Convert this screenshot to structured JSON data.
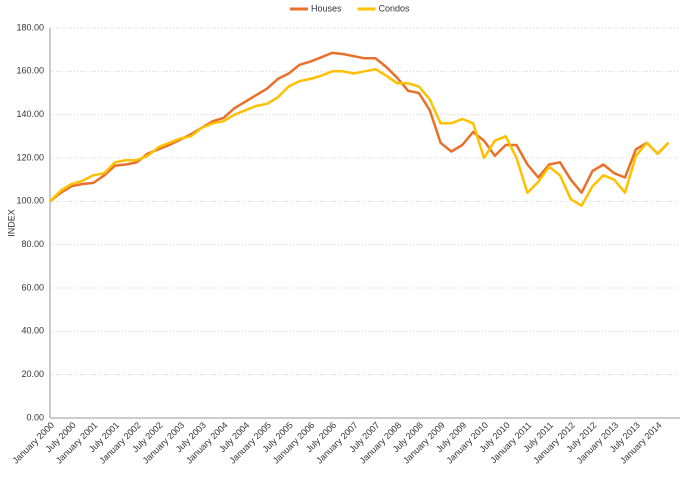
{
  "chart_data": {
    "type": "line",
    "y_label": "INDEX",
    "grid": true,
    "legend": "top",
    "categories": [
      "January 2000",
      null,
      "July 2000",
      null,
      "January 2001",
      null,
      "July 2001",
      null,
      "January 2002",
      null,
      "July 2002",
      null,
      "January 2003",
      null,
      "July 2003",
      null,
      "January 2004",
      null,
      "July 2004",
      null,
      "January 2005",
      null,
      "July 2005",
      null,
      "January 2006",
      null,
      "July 2006",
      null,
      "January 2007",
      null,
      "July 2007",
      null,
      "January 2008",
      null,
      "July 2008",
      null,
      "January 2009",
      null,
      "July 2009",
      null,
      "January 2010",
      null,
      "July 2010",
      null,
      "January 2011",
      null,
      "July 2011",
      null,
      "January 2012",
      null,
      "July 2012",
      null,
      "January 2013",
      null,
      "July 2013",
      null,
      "January 2014",
      null
    ],
    "series": [
      {
        "name": "Houses",
        "color": "#e8702a",
        "values": [
          100,
          104,
          107,
          108,
          108.5,
          112,
          116.5,
          117,
          118,
          122,
          124,
          126,
          128.5,
          131,
          134,
          137,
          138.5,
          143,
          146,
          149,
          152,
          156.5,
          159,
          163,
          164.5,
          166.5,
          168.5,
          168,
          167,
          166,
          166,
          162,
          157,
          151,
          150,
          142,
          127,
          123,
          126,
          132,
          128,
          121,
          126,
          126,
          117,
          111,
          117,
          118,
          110,
          104,
          114,
          117,
          113,
          111,
          124,
          127,
          122,
          127
        ]
      },
      {
        "name": "Condos",
        "color": "#ffc000",
        "values": [
          100,
          105,
          108,
          109.5,
          112,
          113,
          118,
          119,
          119,
          121,
          125,
          127,
          129,
          130,
          134,
          136,
          137,
          140,
          142,
          144,
          145,
          148,
          153,
          155.5,
          156.5,
          158,
          160,
          160,
          159,
          160,
          161,
          158,
          154.5,
          154.5,
          153,
          147,
          136,
          136,
          138,
          136,
          120,
          128,
          130,
          120,
          104,
          109,
          116,
          112,
          101,
          98,
          107,
          112,
          110,
          104,
          121,
          127,
          122,
          127
        ]
      }
    ],
    "ylim": [
      0,
      180
    ],
    "yticks": [
      {
        "value": 0,
        "label": "0.00"
      },
      {
        "value": 20,
        "label": "20.00"
      },
      {
        "value": 40,
        "label": "40.00"
      },
      {
        "value": 60,
        "label": "60.00"
      },
      {
        "value": 80,
        "label": "80.00"
      },
      {
        "value": 100,
        "label": "100.00"
      },
      {
        "value": 120,
        "label": "120.00"
      },
      {
        "value": 140,
        "label": "140.00"
      },
      {
        "value": 160,
        "label": "160.00"
      },
      {
        "value": 180,
        "label": "180.00"
      }
    ]
  }
}
